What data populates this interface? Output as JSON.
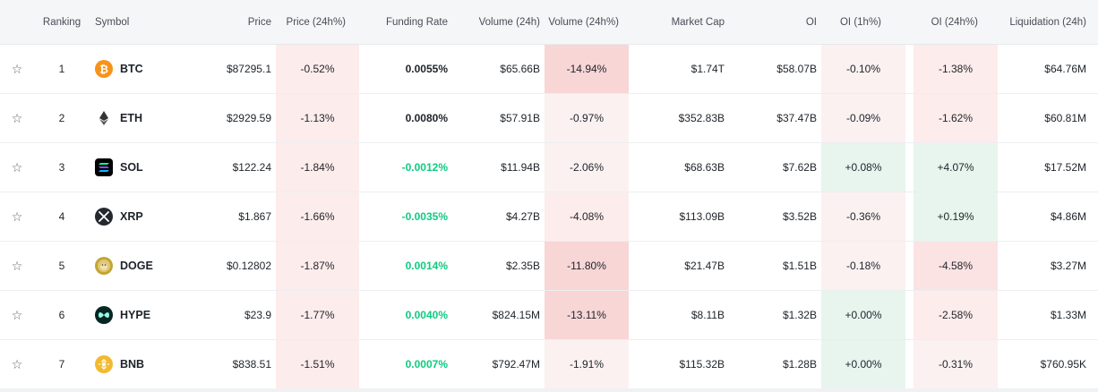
{
  "headers": {
    "ranking": "Ranking",
    "symbol": "Symbol",
    "price": "Price",
    "price_24h": "Price (24h%)",
    "funding_rate": "Funding Rate",
    "volume_24h": "Volume (24h)",
    "volume_24h_pct": "Volume (24h%)",
    "market_cap": "Market Cap",
    "oi": "OI",
    "oi_1h": "OI (1h%)",
    "oi_24h": "OI (24h%)",
    "liquidation_24h": "Liquidation (24h)"
  },
  "star_glyph": "☆",
  "colors": {
    "positive": "#0ecb81",
    "negative_bg": "#fdecec",
    "positive_bg": "#e7f5ee"
  },
  "rows": [
    {
      "rank": "1",
      "symbol": "BTC",
      "icon": "btc-icon",
      "price": "$87295.1",
      "price_24h": "-0.52%",
      "funding": "0.0055%",
      "volume": "$65.66B",
      "volume_pct": "-14.94%",
      "mcap": "$1.74T",
      "oi": "$58.07B",
      "oi_1h": "-0.10%",
      "oi_24h": "-1.38%",
      "liq": "$64.76M"
    },
    {
      "rank": "2",
      "symbol": "ETH",
      "icon": "eth-icon",
      "price": "$2929.59",
      "price_24h": "-1.13%",
      "funding": "0.0080%",
      "volume": "$57.91B",
      "volume_pct": "-0.97%",
      "mcap": "$352.83B",
      "oi": "$37.47B",
      "oi_1h": "-0.09%",
      "oi_24h": "-1.62%",
      "liq": "$60.81M"
    },
    {
      "rank": "3",
      "symbol": "SOL",
      "icon": "sol-icon",
      "price": "$122.24",
      "price_24h": "-1.84%",
      "funding": "-0.0012%",
      "volume": "$11.94B",
      "volume_pct": "-2.06%",
      "mcap": "$68.63B",
      "oi": "$7.62B",
      "oi_1h": "+0.08%",
      "oi_24h": "+4.07%",
      "liq": "$17.52M"
    },
    {
      "rank": "4",
      "symbol": "XRP",
      "icon": "xrp-icon",
      "price": "$1.867",
      "price_24h": "-1.66%",
      "funding": "-0.0035%",
      "volume": "$4.27B",
      "volume_pct": "-4.08%",
      "mcap": "$113.09B",
      "oi": "$3.52B",
      "oi_1h": "-0.36%",
      "oi_24h": "+0.19%",
      "liq": "$4.86M"
    },
    {
      "rank": "5",
      "symbol": "DOGE",
      "icon": "doge-icon",
      "price": "$0.12802",
      "price_24h": "-1.87%",
      "funding": "0.0014%",
      "volume": "$2.35B",
      "volume_pct": "-11.80%",
      "mcap": "$21.47B",
      "oi": "$1.51B",
      "oi_1h": "-0.18%",
      "oi_24h": "-4.58%",
      "liq": "$3.27M"
    },
    {
      "rank": "6",
      "symbol": "HYPE",
      "icon": "hype-icon",
      "price": "$23.9",
      "price_24h": "-1.77%",
      "funding": "0.0040%",
      "volume": "$824.15M",
      "volume_pct": "-13.11%",
      "mcap": "$8.11B",
      "oi": "$1.32B",
      "oi_1h": "+0.00%",
      "oi_24h": "-2.58%",
      "liq": "$1.33M"
    },
    {
      "rank": "7",
      "symbol": "BNB",
      "icon": "bnb-icon",
      "price": "$838.51",
      "price_24h": "-1.51%",
      "funding": "0.0007%",
      "volume": "$792.47M",
      "volume_pct": "-1.91%",
      "mcap": "$115.32B",
      "oi": "$1.28B",
      "oi_1h": "+0.00%",
      "oi_24h": "-0.31%",
      "liq": "$760.95K"
    }
  ]
}
